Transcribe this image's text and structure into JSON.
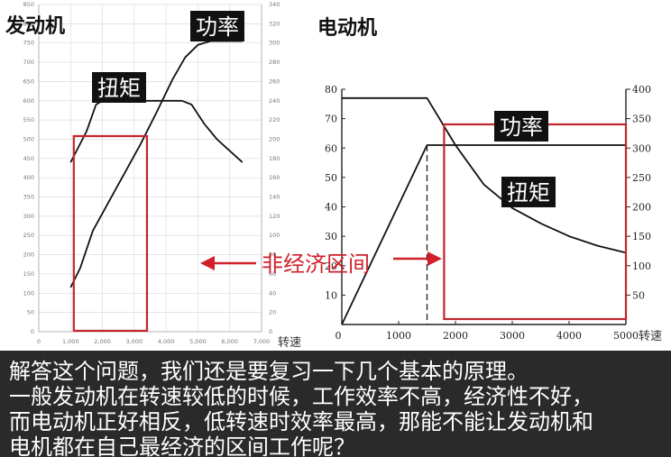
{
  "charts": {
    "engine": {
      "title": "发动机",
      "xlabel": "转速"
    },
    "motor": {
      "title": "电动机",
      "xlabel": "转速"
    }
  },
  "center_label": "非经济区间",
  "colors": {
    "box": "#c0262c",
    "arrow": "#d0202a",
    "tag_bg": "#111111",
    "tag_text": "#ffffff",
    "caption_bg": "#2a2a2a"
  },
  "chart_data": [
    {
      "type": "line",
      "title": "发动机",
      "xlabel": "转速",
      "xlim": [
        0,
        7000
      ],
      "x_ticks": [
        "0",
        "1,000",
        "2,000",
        "3,000",
        "4,000",
        "5,000",
        "6,000",
        "7,000"
      ],
      "y_left_lim": [
        0,
        850
      ],
      "y_left_ticks": [
        "0",
        "50",
        "100",
        "150",
        "200",
        "250",
        "300",
        "350",
        "400",
        "450",
        "500",
        "550",
        "600",
        "650",
        "700",
        "750",
        "800",
        "850"
      ],
      "y_right_lim": [
        0,
        340
      ],
      "y_right_ticks": [
        "0",
        "20",
        "40",
        "60",
        "80",
        "100",
        "120",
        "140",
        "160",
        "180",
        "200",
        "220",
        "240",
        "260",
        "280",
        "300",
        "320",
        "340"
      ],
      "series": [
        {
          "name": "扭矩",
          "axis": "left",
          "x": [
            1000,
            1500,
            1800,
            2000,
            2500,
            3000,
            3500,
            4000,
            4500,
            4800,
            5200,
            5600,
            6000,
            6400
          ],
          "y": [
            440,
            520,
            590,
            600,
            600,
            600,
            600,
            600,
            600,
            590,
            540,
            500,
            470,
            440
          ]
        },
        {
          "name": "功率",
          "axis": "right",
          "x": [
            1000,
            1300,
            1700,
            2200,
            2700,
            3200,
            3700,
            4200,
            4600,
            5000,
            5400,
            5800,
            6400
          ],
          "y": [
            46,
            66,
            105,
            135,
            165,
            195,
            228,
            262,
            285,
            298,
            302,
            302,
            302
          ]
        }
      ],
      "highlight_x": [
        1100,
        3400
      ]
    },
    {
      "type": "line",
      "title": "电动机",
      "xlabel": "转速",
      "xlim": [
        0,
        5000
      ],
      "x_ticks": [
        "0",
        "1000",
        "2000",
        "3000",
        "4000",
        "5000"
      ],
      "y_left_lim": [
        0,
        80
      ],
      "y_left_ticks": [
        "10",
        "20",
        "30",
        "40",
        "50",
        "60",
        "70",
        "80"
      ],
      "y_right_lim": [
        0,
        400
      ],
      "y_right_ticks": [
        "50",
        "100",
        "150",
        "200",
        "250",
        "300",
        "350",
        "400"
      ],
      "series": [
        {
          "name": "功率",
          "axis": "left",
          "x": [
            0,
            1500,
            2000,
            3000,
            4000,
            5000
          ],
          "y": [
            0,
            61,
            61,
            61,
            61,
            61
          ]
        },
        {
          "name": "扭矩",
          "axis": "right",
          "x": [
            0,
            1500,
            2000,
            2500,
            3000,
            3500,
            4000,
            4500,
            5000
          ],
          "y": [
            385,
            385,
            305,
            238,
            198,
            172,
            150,
            134,
            122
          ]
        }
      ],
      "vline_x": 1500,
      "highlight_x": [
        1800,
        5000
      ]
    }
  ],
  "caption": [
    "解答这个问题，我们还是要复习一下几个基本的原理。",
    "一般发动机在转速较低的时候，工作效率不高，经济性不好，",
    "而电动机正好相反，低转速时效率最高，那能不能让发动机和",
    "电机都在自己最经济的区间工作呢？"
  ]
}
